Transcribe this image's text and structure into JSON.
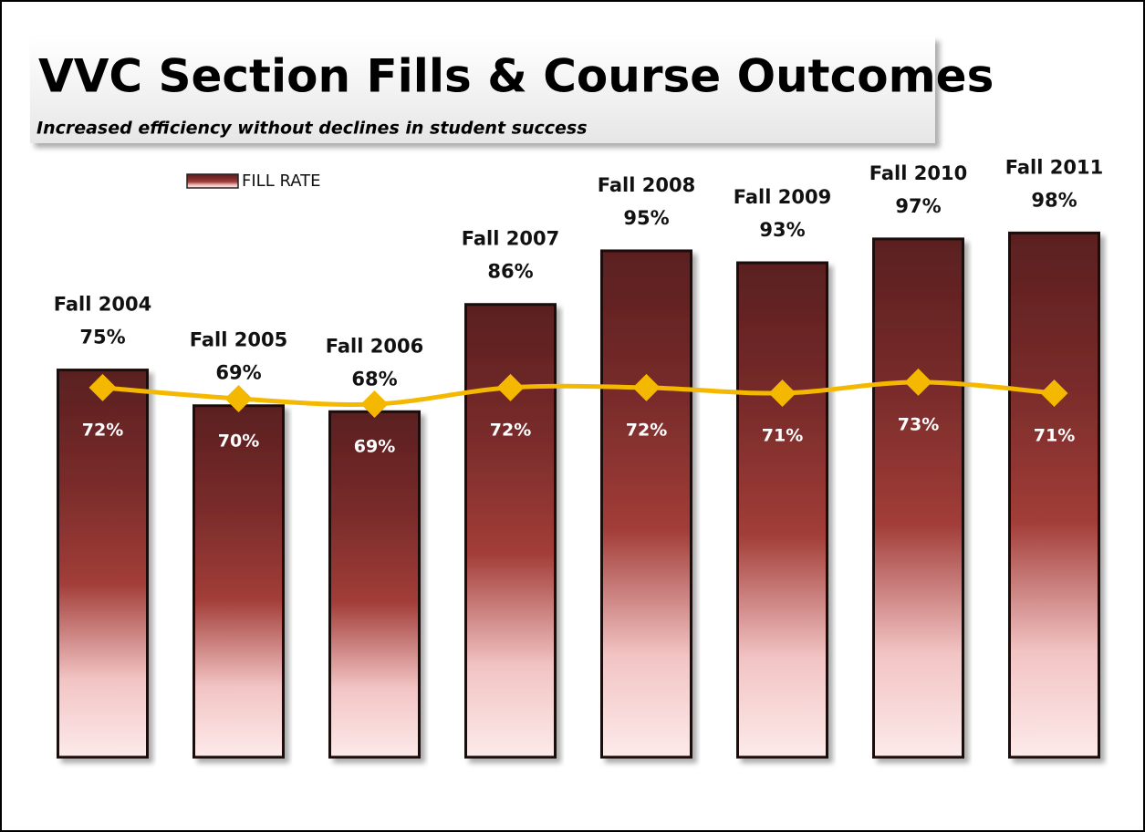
{
  "chart_data": {
    "type": "bar",
    "title": "VVC Section Fills & Course Outcomes",
    "subtitle": "Increased efficiency without declines in student success",
    "categories": [
      "Fall 2004",
      "Fall 2005",
      "Fall 2006",
      "Fall 2007",
      "Fall 2008",
      "Fall 2009",
      "Fall 2010",
      "Fall 2011"
    ],
    "series": [
      {
        "name": "FILL RATE",
        "type": "bar",
        "color": "#8b2e2e",
        "values": [
          75,
          69,
          68,
          86,
          95,
          93,
          97,
          98
        ],
        "value_labels": [
          "75%",
          "69%",
          "68%",
          "86%",
          "95%",
          "93%",
          "97%",
          "98%"
        ]
      },
      {
        "type": "line",
        "axis": "y2",
        "color": "#f5b800",
        "values": [
          72,
          70,
          69,
          72,
          72,
          71,
          73,
          71
        ],
        "value_labels": [
          "72%",
          "70%",
          "69%",
          "72%",
          "72%",
          "71%",
          "73%",
          "71%"
        ]
      }
    ],
    "ylim": [
      10,
      110
    ],
    "y2lim": [
      5,
      113
    ],
    "legend": "top-left"
  }
}
